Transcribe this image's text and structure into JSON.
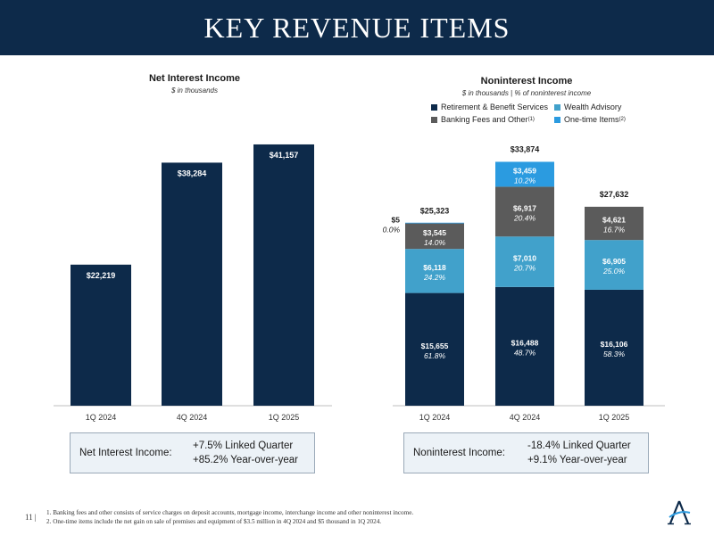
{
  "header": {
    "title": "KEY REVENUE ITEMS"
  },
  "nii": {
    "title": "Net Interest Income",
    "subtitle": "$ in thousands",
    "summary_label": "Net Interest Income:",
    "summary_lines": [
      "+7.5% Linked Quarter",
      "+85.2% Year-over-year"
    ]
  },
  "nonint": {
    "title": "Noninterest Income",
    "subtitle": "$ in thousands | % of noninterest income",
    "summary_label": "Noninterest Income:",
    "summary_lines": [
      "-18.4% Linked Quarter",
      "+9.1% Year-over-year"
    ],
    "legend": [
      {
        "label": "Retirement & Benefit Services",
        "sup": "",
        "color": "#0d2a4a"
      },
      {
        "label": "Wealth Advisory",
        "sup": "",
        "color": "#41a1cb"
      },
      {
        "label": "Banking Fees and Other",
        "sup": "(1)",
        "color": "#5b5b5b"
      },
      {
        "label": "One-time Items",
        "sup": "(2)",
        "color": "#2b9be0"
      }
    ]
  },
  "chart_data": [
    {
      "type": "bar",
      "title": "Net Interest Income",
      "subtitle": "$ in thousands",
      "categories": [
        "1Q 2024",
        "4Q 2024",
        "1Q 2025"
      ],
      "values": [
        22219,
        38284,
        41157
      ],
      "labels": [
        "$22,219",
        "$38,284",
        "$41,157"
      ],
      "color": "#0d2a4a",
      "ylim": [
        0,
        50000
      ]
    },
    {
      "type": "bar",
      "stacked": true,
      "title": "Noninterest Income",
      "subtitle": "$ in thousands | % of noninterest income",
      "categories": [
        "1Q 2024",
        "4Q 2024",
        "1Q 2025"
      ],
      "totals": [
        "$25,323",
        "$33,874",
        "$27,632"
      ],
      "total_values": [
        25323,
        33874,
        27632
      ],
      "ylim": [
        0,
        40000
      ],
      "series": [
        {
          "name": "Retirement & Benefit Services",
          "color": "#0d2a4a",
          "values": [
            15655,
            16488,
            16106
          ],
          "labels": [
            "$15,655",
            "$16,488",
            "$16,106"
          ],
          "pcts": [
            "61.8%",
            "48.7%",
            "58.3%"
          ]
        },
        {
          "name": "Wealth Advisory",
          "color": "#41a1cb",
          "values": [
            6118,
            7010,
            6905
          ],
          "labels": [
            "$6,118",
            "$7,010",
            "$6,905"
          ],
          "pcts": [
            "24.2%",
            "20.7%",
            "25.0%"
          ]
        },
        {
          "name": "Banking Fees and Other",
          "color": "#5b5b5b",
          "values": [
            3545,
            6917,
            4621
          ],
          "labels": [
            "$3,545",
            "$6,917",
            "$4,621"
          ],
          "pcts": [
            "14.0%",
            "20.4%",
            "16.7%"
          ]
        },
        {
          "name": "One-time Items",
          "color": "#2b9be0",
          "values": [
            5,
            3459,
            0
          ],
          "labels": [
            "$5",
            "$3,459",
            ""
          ],
          "pcts": [
            "0.0%",
            "10.2%",
            ""
          ]
        }
      ]
    }
  ],
  "footer": {
    "page": "11 |",
    "notes": [
      "1. Banking fees and other consists of service charges on deposit accounts, mortgage income, interchange income and other noninterest income.",
      "2. One-time items include the net gain on sale of premises and equipment of $3.5 million in 4Q 2024 and $5 thousand in 1Q 2024."
    ]
  }
}
